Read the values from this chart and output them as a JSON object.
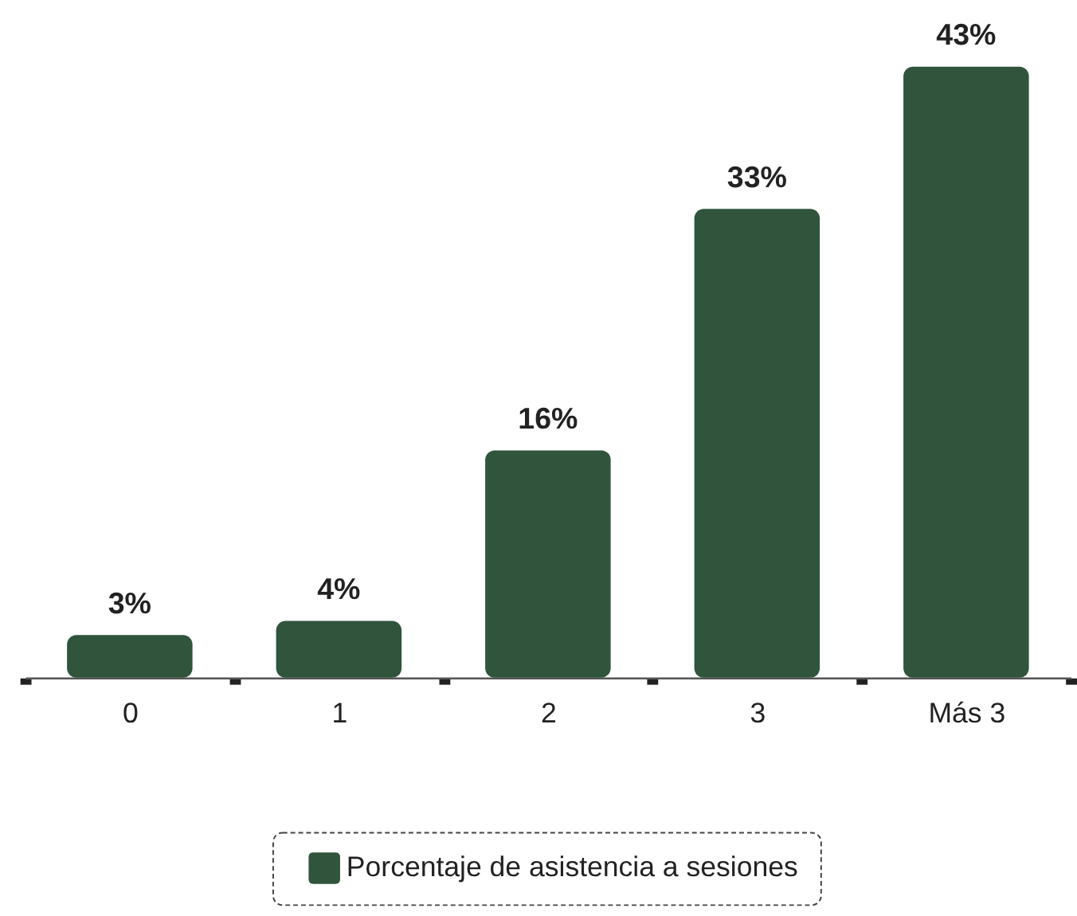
{
  "chart_data": {
    "type": "bar",
    "categories": [
      "0",
      "1",
      "2",
      "3",
      "Más 3"
    ],
    "series": [
      {
        "name": "Porcentaje de asistencia a sesiones",
        "color": "#30543c",
        "values": [
          3,
          4,
          16,
          33,
          43
        ],
        "value_labels": [
          "3%",
          "4%",
          "16%",
          "33%",
          "43%"
        ]
      }
    ],
    "legend": "bottom",
    "grid": false,
    "tick_labels": "x"
  }
}
